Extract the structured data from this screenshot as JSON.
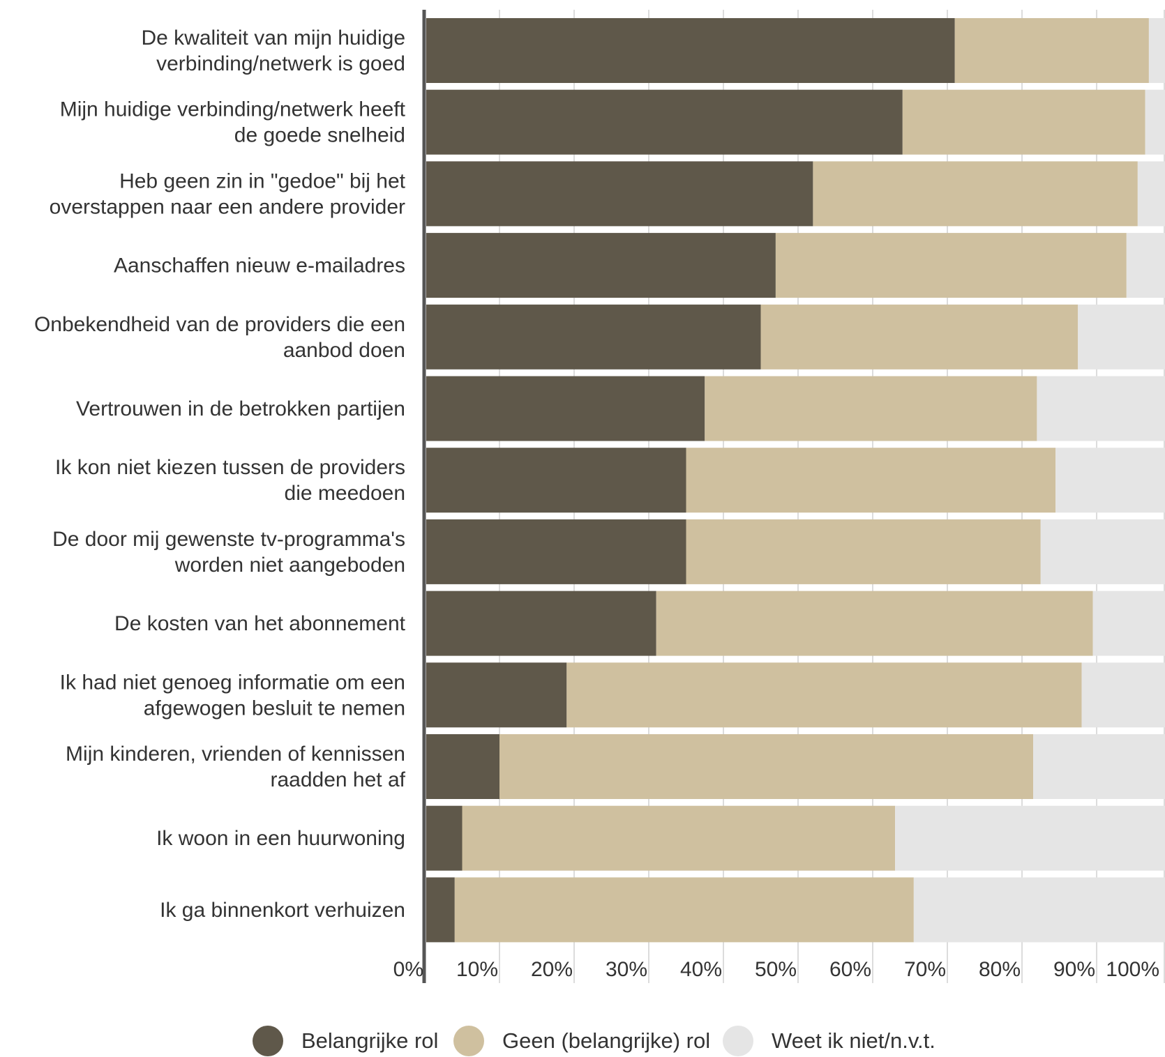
{
  "chart_data": {
    "type": "bar",
    "orientation": "horizontal",
    "stacked": true,
    "categories": [
      [
        "De kwaliteit van mijn huidige",
        "verbinding/netwerk is goed"
      ],
      [
        "Mijn huidige verbinding/netwerk heeft",
        "de goede snelheid"
      ],
      [
        "Heb geen zin in \"gedoe\" bij het",
        "overstappen naar een andere provider"
      ],
      [
        "Aanschaffen nieuw e-mailadres"
      ],
      [
        "Onbekendheid van de providers die een",
        "aanbod doen"
      ],
      [
        "Vertrouwen in de betrokken partijen"
      ],
      [
        "Ik kon niet kiezen tussen de providers",
        "die meedoen"
      ],
      [
        "De door mij gewenste tv-programma's",
        "worden niet aangeboden"
      ],
      [
        "De kosten van het abonnement"
      ],
      [
        "Ik had niet genoeg informatie om een",
        "afgewogen besluit te nemen"
      ],
      [
        "Mijn kinderen, vrienden of kennissen",
        "raadden het af"
      ],
      [
        "Ik woon in een huurwoning"
      ],
      [
        "Ik ga binnenkort verhuizen"
      ]
    ],
    "series": [
      {
        "name": "Belangrijke rol",
        "color": "#5f584a",
        "values": [
          71,
          64,
          52,
          47,
          45,
          37.5,
          35,
          35,
          31,
          19,
          10,
          5,
          4
        ]
      },
      {
        "name": "Geen (belangrijke) rol",
        "color": "#cfc09f",
        "values": [
          26,
          32.5,
          43.5,
          47,
          42.5,
          44.5,
          49.5,
          47.5,
          58.5,
          69,
          71.5,
          58,
          61.5
        ]
      },
      {
        "name": "Weet ik niet/n.v.t.",
        "color": "#e5e5e5",
        "values": [
          3,
          3.5,
          4.5,
          6,
          12.5,
          18,
          15.5,
          17.5,
          10.5,
          12,
          18.5,
          37,
          34.5
        ]
      }
    ],
    "x_ticks": [
      "0%",
      "10%",
      "20%",
      "30%",
      "40%",
      "50%",
      "60%",
      "70%",
      "80%",
      "90%",
      "100%"
    ],
    "xlim": [
      0,
      100
    ],
    "grid": true,
    "legend_position": "bottom"
  }
}
